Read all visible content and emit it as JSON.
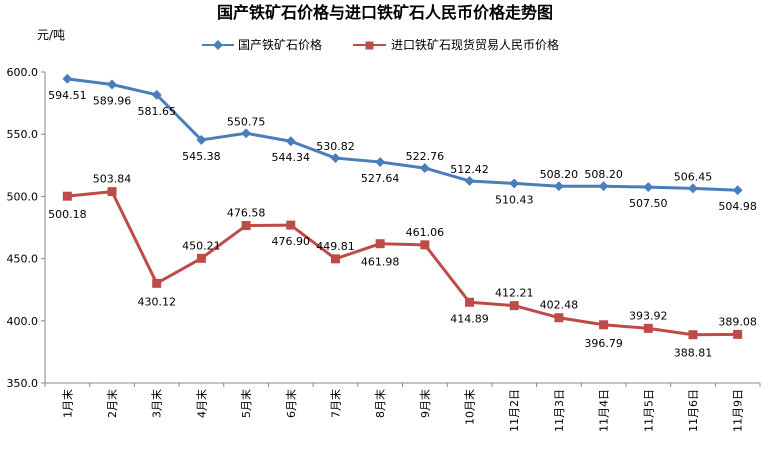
{
  "chart_data": {
    "type": "line",
    "title": "国产铁矿石价格与进口铁矿石人民币价格走势图",
    "unit_label": "元/吨",
    "xlabel": "",
    "ylabel": "元/吨",
    "ylim": [
      350,
      600
    ],
    "y_ticks": [
      "350.0",
      "400.0",
      "450.0",
      "500.0",
      "550.0",
      "600.0"
    ],
    "y_tick_values": [
      350,
      400,
      450,
      500,
      550,
      600
    ],
    "grid": false,
    "legend_position": "top",
    "categories": [
      "1月末",
      "2月末",
      "3月末",
      "4月末",
      "5月末",
      "6月末",
      "7月末",
      "8月末",
      "9月末",
      "10月末",
      "11月2日",
      "11月3日",
      "11月4日",
      "11月5日",
      "11月6日",
      "11月9日"
    ],
    "series": [
      {
        "name": "国产铁矿石价格",
        "color": "#4A7EBB",
        "marker": "diamond",
        "values": [
          594.51,
          589.96,
          581.65,
          545.38,
          550.75,
          544.34,
          530.82,
          527.64,
          522.76,
          512.42,
          510.43,
          508.2,
          508.2,
          507.5,
          506.45,
          504.98
        ],
        "labels": [
          "594.51",
          "589.96",
          "581.65",
          "545.38",
          "550.75",
          "544.34",
          "530.82",
          "527.64",
          "522.76",
          "512.42",
          "510.43",
          "508.20",
          "508.20",
          "507.50",
          "506.45",
          "504.98"
        ]
      },
      {
        "name": "进口铁矿石现货贸易人民币价格",
        "color": "#BE4B48",
        "marker": "square",
        "values": [
          500.18,
          503.84,
          430.12,
          450.21,
          476.58,
          476.9,
          449.81,
          461.98,
          461.06,
          414.89,
          412.21,
          402.48,
          396.79,
          393.92,
          388.81,
          389.08
        ],
        "labels": [
          "500.18",
          "503.84",
          "430.12",
          "450.21",
          "476.58",
          "476.90",
          "449.81",
          "461.98",
          "461.06",
          "414.89",
          "412.21",
          "402.48",
          "396.79",
          "393.92",
          "388.81",
          "389.08"
        ]
      }
    ]
  }
}
